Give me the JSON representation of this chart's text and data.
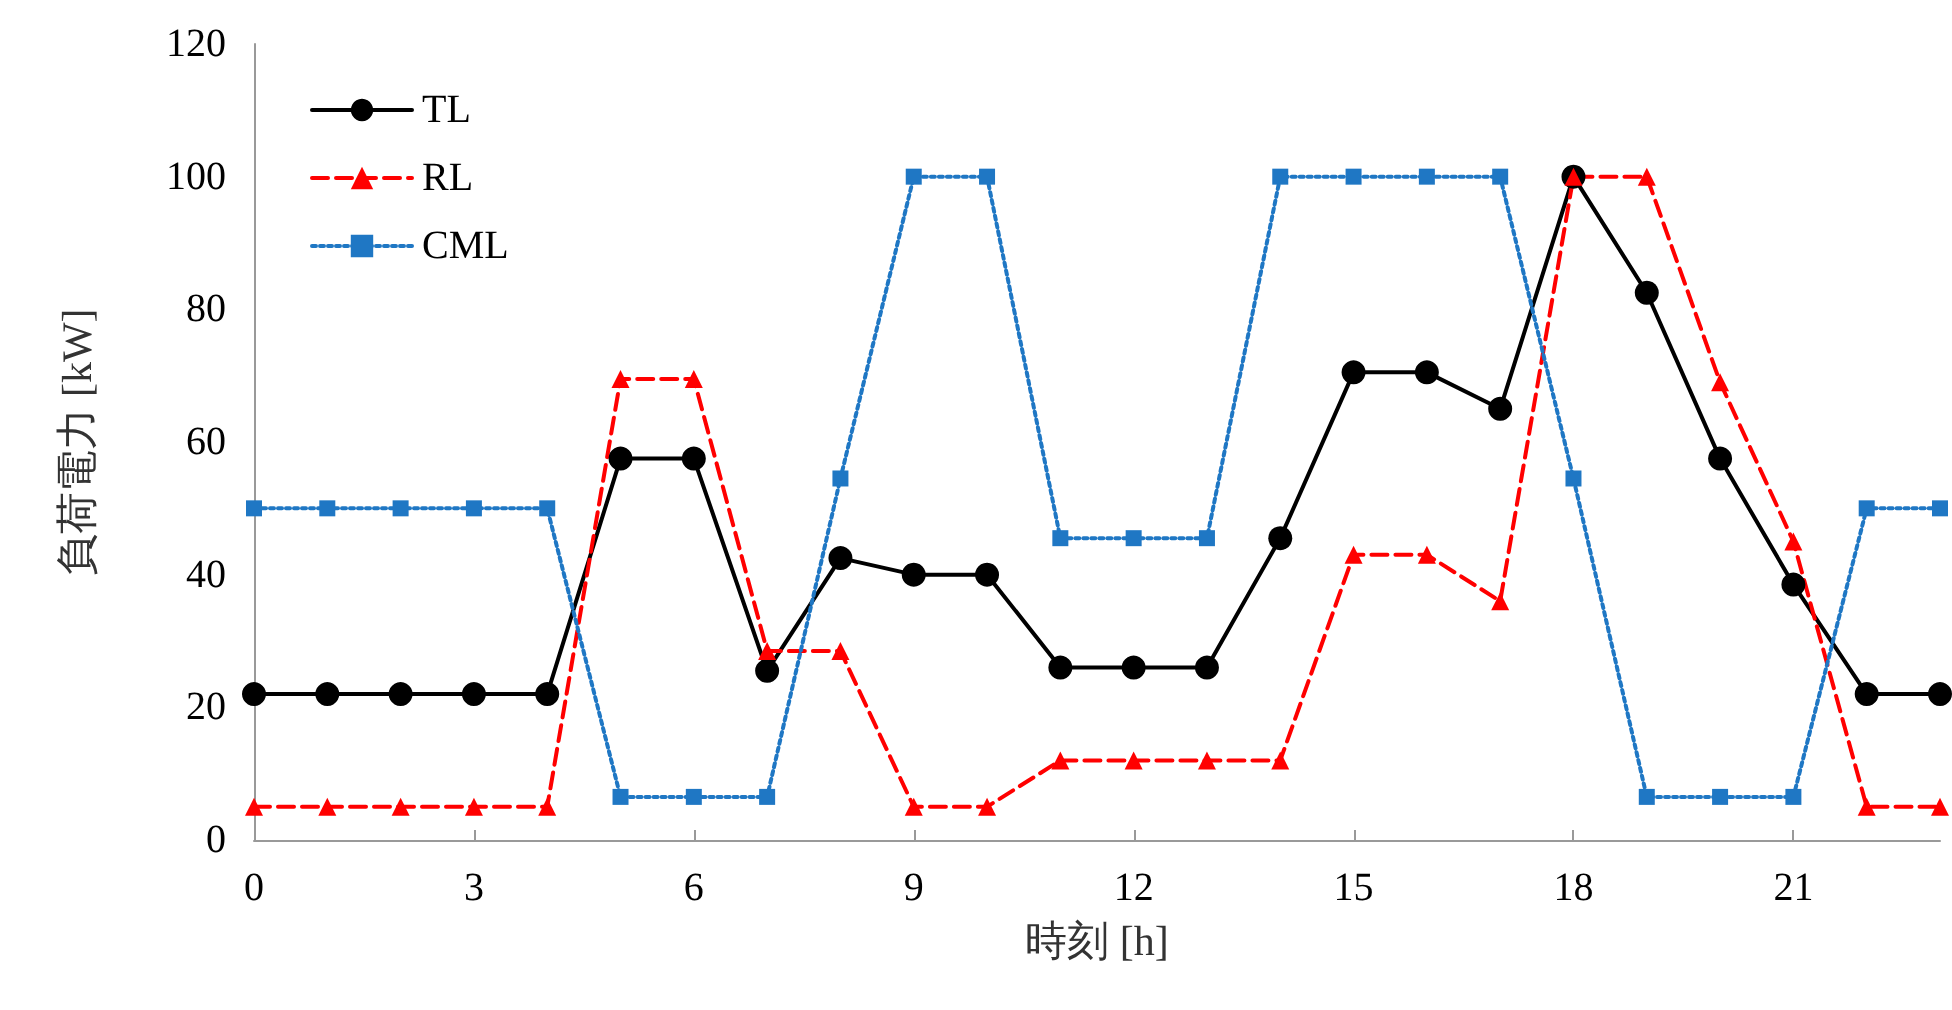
{
  "chart_data": {
    "type": "line",
    "xlabel": "時刻 [h]",
    "ylabel": "負荷電力 [kW]",
    "x": [
      0,
      1,
      2,
      3,
      4,
      5,
      6,
      7,
      8,
      9,
      10,
      11,
      12,
      13,
      14,
      15,
      16,
      17,
      18,
      19,
      20,
      21,
      22,
      23
    ],
    "series": [
      {
        "name": "TL",
        "color": "#000000",
        "marker": "circle",
        "line_style": "solid",
        "values": [
          22,
          22,
          22,
          22,
          22,
          57.5,
          57.5,
          25.5,
          42.5,
          40,
          40,
          26,
          26,
          26,
          45.5,
          70.5,
          70.5,
          65,
          100,
          82.5,
          57.5,
          38.5,
          22,
          22
        ]
      },
      {
        "name": "RL",
        "color": "#ff0000",
        "marker": "triangle",
        "line_style": "dashed",
        "values": [
          5,
          5,
          5,
          5,
          5,
          69.5,
          69.5,
          28.5,
          28.5,
          5,
          5,
          12,
          12,
          12,
          12,
          43,
          43,
          36,
          100,
          100,
          69,
          45,
          5,
          5
        ]
      },
      {
        "name": "CML",
        "color": "#1f77c4",
        "marker": "square",
        "line_style": "dotted",
        "values": [
          50,
          50,
          50,
          50,
          50,
          6.5,
          6.5,
          6.5,
          54.5,
          100,
          100,
          45.5,
          45.5,
          45.5,
          100,
          100,
          100,
          100,
          54.5,
          6.5,
          6.5,
          6.5,
          50,
          50
        ]
      }
    ],
    "xlim": [
      0,
      23
    ],
    "xticks": [
      0,
      3,
      6,
      9,
      12,
      15,
      18,
      21
    ],
    "ylim": [
      0,
      120
    ],
    "yticks": [
      0,
      20,
      40,
      60,
      80,
      100,
      120
    ],
    "grid": false,
    "legend": "top left"
  }
}
